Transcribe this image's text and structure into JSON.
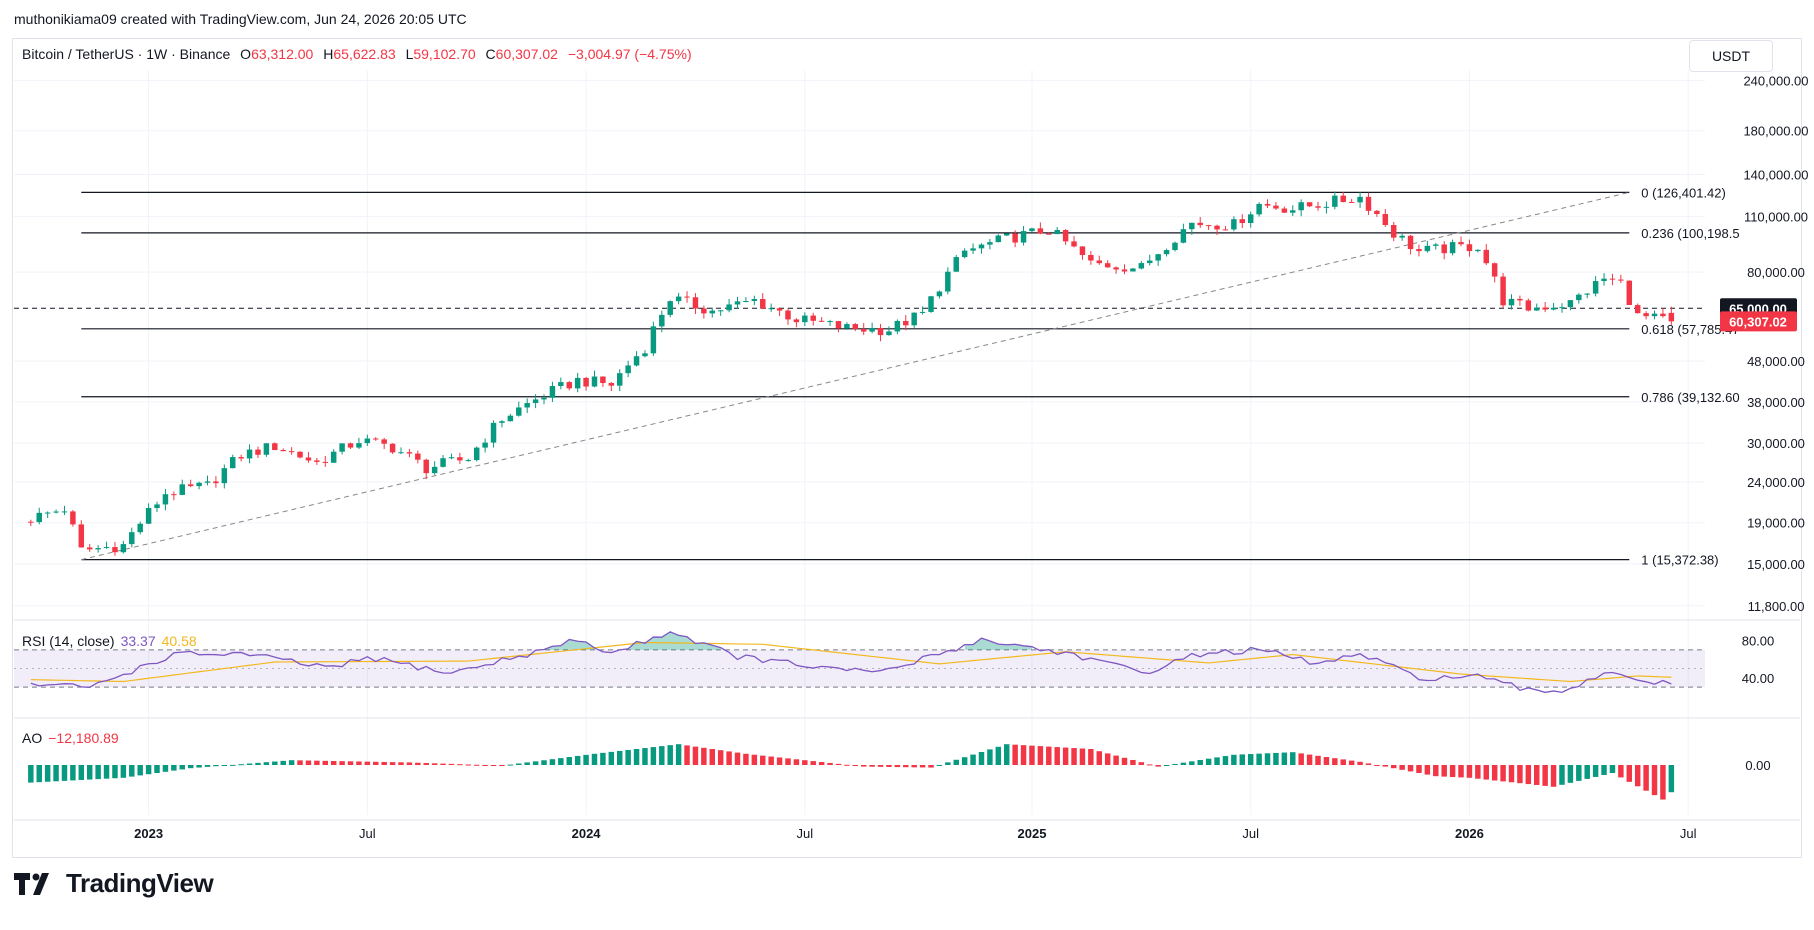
{
  "header": {
    "caption": "muthonikiama09 created with TradingView.com, Jun 24, 2026 20:05 UTC"
  },
  "legend": {
    "symbol": "Bitcoin / TetherUS · 1W · Binance",
    "o_label": "O",
    "o_value": "63,312.00",
    "h_label": "H",
    "h_value": "65,622.83",
    "l_label": "L",
    "l_value": "59,102.70",
    "c_label": "C",
    "c_value": "60,307.02",
    "change": "−3,004.97 (−4.75%)"
  },
  "currency": "USDT",
  "price_axis": [
    "240,000.00",
    "180,000.00",
    "140,000.00",
    "110,000.00",
    "80,000.00",
    "48,000.00",
    "38,000.00",
    "30,000.00",
    "24,000.00",
    "19,000.00",
    "15,000.00",
    "11,800.00"
  ],
  "price_badges": {
    "level": "65,000.00",
    "last": "60,307.02"
  },
  "fib_labels": [
    "0 (126,401.42)",
    "0.236 (100,198.5",
    "0.618 (57,785.47",
    "0.786 (39,132.60",
    "1 (15,372.38)"
  ],
  "rsi": {
    "name": "RSI (14, close)",
    "value": "33.37",
    "ma": "40.58",
    "axis": [
      "80.00",
      "40.00"
    ]
  },
  "ao": {
    "name": "AO",
    "value": "−12,180.89",
    "axis": [
      "0.00"
    ]
  },
  "time_axis": [
    "2023",
    "Jul",
    "2024",
    "Jul",
    "2025",
    "Jul",
    "2026",
    "Jul"
  ],
  "brand": {
    "name": "TradingView"
  },
  "colors": {
    "up": "#089981",
    "down": "#f23645",
    "rsi": "#7e57c2",
    "rsi_ma": "#f2b81e",
    "badge_dark": "#131722",
    "badge_red": "#f23645"
  },
  "chart_data": {
    "type": "candlestick",
    "symbol": "Bitcoin / TetherUS",
    "interval": "1W",
    "scale": "log",
    "ylim": [
      11000,
      255000
    ],
    "fib_levels": [
      {
        "ratio": 0,
        "price": 126401.42
      },
      {
        "ratio": 0.236,
        "price": 100198.5
      },
      {
        "ratio": 0.618,
        "price": 57785.47
      },
      {
        "ratio": 0.786,
        "price": 39132.6
      },
      {
        "ratio": 1,
        "price": 15372.38
      }
    ],
    "horizontal_line": 65000,
    "trend_line": [
      {
        "date": "2022-11-07",
        "price": 15372
      },
      {
        "date": "2026-05-18",
        "price": 126401
      }
    ],
    "weekly_close_trajectory": [
      {
        "date": "2022-09-26",
        "price": 19500
      },
      {
        "date": "2022-10-24",
        "price": 20600
      },
      {
        "date": "2022-11-07",
        "price": 16200
      },
      {
        "date": "2022-12-12",
        "price": 16700
      },
      {
        "date": "2023-01-16",
        "price": 22500
      },
      {
        "date": "2023-02-20",
        "price": 23500
      },
      {
        "date": "2023-03-20",
        "price": 28000
      },
      {
        "date": "2023-04-17",
        "price": 29500
      },
      {
        "date": "2023-05-22",
        "price": 26800
      },
      {
        "date": "2023-06-26",
        "price": 30500
      },
      {
        "date": "2023-07-24",
        "price": 29300
      },
      {
        "date": "2023-08-21",
        "price": 26000
      },
      {
        "date": "2023-09-25",
        "price": 27500
      },
      {
        "date": "2023-10-23",
        "price": 34500
      },
      {
        "date": "2023-11-27",
        "price": 39500
      },
      {
        "date": "2023-12-25",
        "price": 43000
      },
      {
        "date": "2024-01-22",
        "price": 42000
      },
      {
        "date": "2024-02-19",
        "price": 52000
      },
      {
        "date": "2024-03-11",
        "price": 69000
      },
      {
        "date": "2024-04-15",
        "price": 64000
      },
      {
        "date": "2024-05-20",
        "price": 68000
      },
      {
        "date": "2024-06-24",
        "price": 61000
      },
      {
        "date": "2024-08-05",
        "price": 58000
      },
      {
        "date": "2024-09-09",
        "price": 57500
      },
      {
        "date": "2024-10-07",
        "price": 63000
      },
      {
        "date": "2024-11-11",
        "price": 90000
      },
      {
        "date": "2024-12-16",
        "price": 97000
      },
      {
        "date": "2025-01-20",
        "price": 102000
      },
      {
        "date": "2025-02-24",
        "price": 84000
      },
      {
        "date": "2025-04-07",
        "price": 82000
      },
      {
        "date": "2025-05-19",
        "price": 106000
      },
      {
        "date": "2025-06-23",
        "price": 105000
      },
      {
        "date": "2025-07-14",
        "price": 118000
      },
      {
        "date": "2025-08-11",
        "price": 115000
      },
      {
        "date": "2025-10-06",
        "price": 123000
      },
      {
        "date": "2025-11-03",
        "price": 100000
      },
      {
        "date": "2025-11-24",
        "price": 90000
      },
      {
        "date": "2025-12-22",
        "price": 92000
      },
      {
        "date": "2026-01-12",
        "price": 93000
      },
      {
        "date": "2026-02-02",
        "price": 68000
      },
      {
        "date": "2026-02-23",
        "price": 65000
      },
      {
        "date": "2026-03-30",
        "price": 67000
      },
      {
        "date": "2026-04-27",
        "price": 77000
      },
      {
        "date": "2026-05-11",
        "price": 75000
      },
      {
        "date": "2026-05-25",
        "price": 62000
      },
      {
        "date": "2026-06-22",
        "price": 60307
      }
    ],
    "last_candle": {
      "open": 63312.0,
      "high": 65622.83,
      "low": 59102.7,
      "close": 60307.02
    },
    "rsi_range": [
      0,
      100
    ],
    "rsi_band": [
      30,
      70
    ],
    "rsi_trajectory": [
      {
        "date": "2022-09-26",
        "rsi": 33
      },
      {
        "date": "2022-11-14",
        "rsi": 30
      },
      {
        "date": "2023-01-23",
        "rsi": 65
      },
      {
        "date": "2023-03-20",
        "rsi": 66
      },
      {
        "date": "2023-06-05",
        "rsi": 50
      },
      {
        "date": "2023-07-03",
        "rsi": 62
      },
      {
        "date": "2023-09-11",
        "rsi": 45
      },
      {
        "date": "2023-11-27",
        "rsi": 70
      },
      {
        "date": "2023-12-25",
        "rsi": 81
      },
      {
        "date": "2024-01-22",
        "rsi": 66
      },
      {
        "date": "2024-03-11",
        "rsi": 90
      },
      {
        "date": "2024-05-06",
        "rsi": 63
      },
      {
        "date": "2024-08-05",
        "rsi": 47
      },
      {
        "date": "2024-09-09",
        "rsi": 48
      },
      {
        "date": "2024-11-25",
        "rsi": 81
      },
      {
        "date": "2025-02-10",
        "rsi": 65
      },
      {
        "date": "2025-04-07",
        "rsi": 45
      },
      {
        "date": "2025-05-26",
        "rsi": 66
      },
      {
        "date": "2025-07-14",
        "rsi": 70
      },
      {
        "date": "2025-09-01",
        "rsi": 55
      },
      {
        "date": "2025-10-06",
        "rsi": 65
      },
      {
        "date": "2025-11-24",
        "rsi": 40
      },
      {
        "date": "2026-01-12",
        "rsi": 41
      },
      {
        "date": "2026-02-23",
        "rsi": 26
      },
      {
        "date": "2026-03-23",
        "rsi": 26
      },
      {
        "date": "2026-05-04",
        "rsi": 48
      },
      {
        "date": "2026-06-01",
        "rsi": 36
      },
      {
        "date": "2026-06-22",
        "rsi": 33.37
      }
    ],
    "rsi_ma_trajectory": [
      {
        "date": "2022-09-26",
        "rsi_ma": 38
      },
      {
        "date": "2022-12-12",
        "rsi_ma": 36
      },
      {
        "date": "2023-04-17",
        "rsi_ma": 57
      },
      {
        "date": "2023-09-25",
        "rsi_ma": 58
      },
      {
        "date": "2024-02-19",
        "rsi_ma": 78
      },
      {
        "date": "2024-05-27",
        "rsi_ma": 76
      },
      {
        "date": "2024-10-21",
        "rsi_ma": 55
      },
      {
        "date": "2025-02-03",
        "rsi_ma": 68
      },
      {
        "date": "2025-06-02",
        "rsi_ma": 56
      },
      {
        "date": "2025-08-11",
        "rsi_ma": 65
      },
      {
        "date": "2025-12-29",
        "rsi_ma": 44
      },
      {
        "date": "2026-03-30",
        "rsi_ma": 36
      },
      {
        "date": "2026-05-25",
        "rsi_ma": 42
      },
      {
        "date": "2026-06-22",
        "rsi_ma": 40.58
      }
    ],
    "ao_trajectory": [
      {
        "date": "2022-09-26",
        "ao": -5500
      },
      {
        "date": "2022-12-12",
        "ao": -4000
      },
      {
        "date": "2023-02-06",
        "ao": -1000
      },
      {
        "date": "2023-05-01",
        "ao": 1500
      },
      {
        "date": "2023-08-07",
        "ao": 800
      },
      {
        "date": "2023-10-23",
        "ao": -200
      },
      {
        "date": "2024-01-08",
        "ao": 3500
      },
      {
        "date": "2024-03-18",
        "ao": 6500
      },
      {
        "date": "2024-05-13",
        "ao": 3500
      },
      {
        "date": "2024-08-19",
        "ao": -500
      },
      {
        "date": "2024-10-14",
        "ao": -800
      },
      {
        "date": "2024-12-16",
        "ao": 6500
      },
      {
        "date": "2025-02-24",
        "ao": 5000
      },
      {
        "date": "2025-04-21",
        "ao": -500
      },
      {
        "date": "2025-06-23",
        "ao": 3200
      },
      {
        "date": "2025-08-11",
        "ao": 4000
      },
      {
        "date": "2025-10-06",
        "ao": 1000
      },
      {
        "date": "2025-12-08",
        "ao": -3500
      },
      {
        "date": "2026-01-05",
        "ao": -4000
      },
      {
        "date": "2026-03-16",
        "ao": -6800
      },
      {
        "date": "2026-05-04",
        "ao": -2500
      },
      {
        "date": "2026-06-22",
        "ao": -12180.89
      }
    ]
  }
}
